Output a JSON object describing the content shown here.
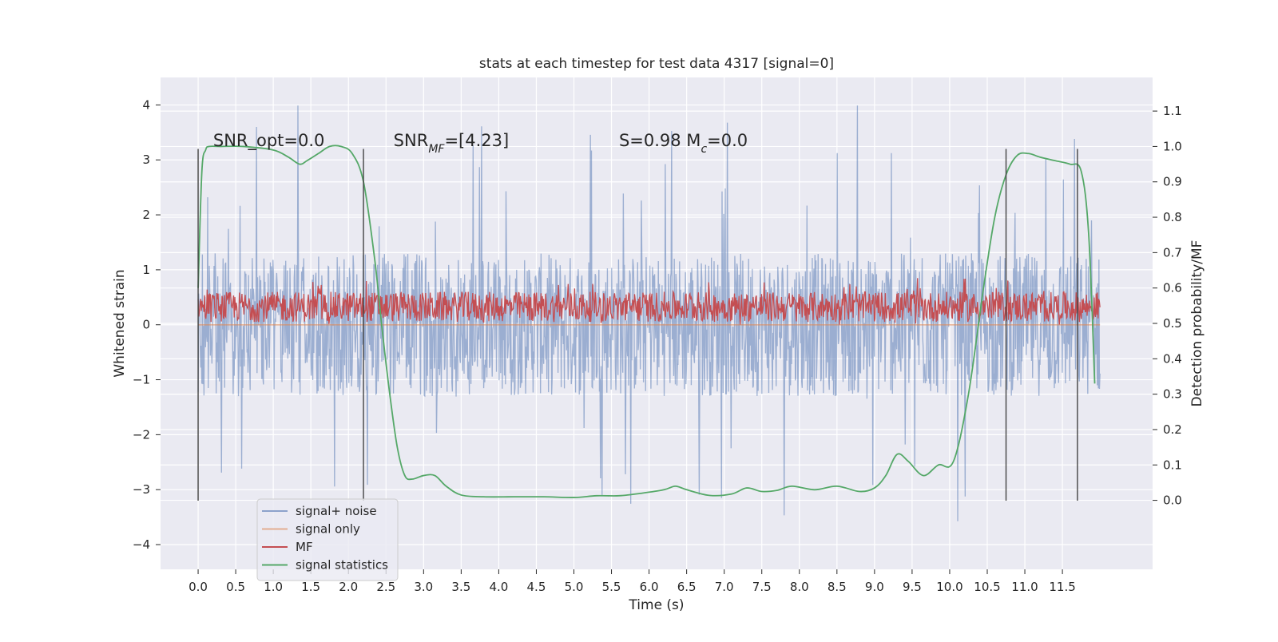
{
  "chart_data": {
    "type": "line",
    "title": "stats at each timestep for test data 4317 [signal=0]",
    "xlabel": "Time (s)",
    "ylabel": "Whitened strain",
    "ylabel_right": "Detection probability/MF",
    "xlim": [
      -0.5,
      12.7
    ],
    "ylim": [
      -4.45,
      4.5
    ],
    "ylim_right": [
      -0.195,
      1.195
    ],
    "x_ticks": [
      0.0,
      0.5,
      1.0,
      1.5,
      2.0,
      2.5,
      3.0,
      3.5,
      4.0,
      4.5,
      5.0,
      5.5,
      6.0,
      6.5,
      7.0,
      7.5,
      8.0,
      8.5,
      9.0,
      9.5,
      10.0,
      10.5,
      11.0,
      11.5
    ],
    "x_tick_labels": [
      "0.0",
      "0.5",
      "1.0",
      "1.5",
      "2.0",
      "2.5",
      "3.0",
      "3.5",
      "4.0",
      "4.5",
      "5.0",
      "5.5",
      "6.0",
      "6.5",
      "7.0",
      "7.5",
      "8.0",
      "8.5",
      "9.0",
      "9.5",
      "10.0",
      "10.5",
      "11.0",
      "11.5"
    ],
    "y_ticks": [
      4,
      3,
      2,
      1,
      0,
      -1,
      -2,
      -3,
      -4
    ],
    "y_tick_labels": [
      "4",
      "3",
      "2",
      "1",
      "0",
      "−1",
      "−2",
      "−3",
      "−4"
    ],
    "y_right_ticks": [
      1.1,
      1.0,
      0.9,
      0.8,
      0.7,
      0.6,
      0.5,
      0.4,
      0.3,
      0.2,
      0.1,
      0.0
    ],
    "y_right_tick_labels": [
      "1.1",
      "1.0",
      "0.9",
      "0.8",
      "0.7",
      "0.6",
      "0.5",
      "0.4",
      "0.3",
      "0.2",
      "0.1",
      "0.0"
    ],
    "grid": true,
    "legend_position": "lower-left",
    "annotations": [
      {
        "text": "SNR_opt=0.0",
        "x": 0.2,
        "y": 3.25
      },
      {
        "text": "SNR_MF=[4.23]",
        "x": 2.6,
        "y": 3.25
      },
      {
        "text": "S=0.98   M_c=0.0",
        "x": 5.6,
        "y": 3.25
      }
    ],
    "vertical_lines_x": [
      0.0,
      2.2,
      10.75,
      11.7
    ],
    "vertical_lines_yrange": [
      -3.2,
      3.2
    ],
    "series": [
      {
        "name": "signal+ noise",
        "color": "#4c72b0",
        "axis": "left",
        "kind": "noise",
        "x_range": [
          0.0,
          12.0
        ],
        "points": 1700,
        "band": [
          -1.3,
          1.3
        ],
        "spike_range": [
          -3.6,
          4.1
        ],
        "alpha": 0.5
      },
      {
        "name": "signal only",
        "color": "#dd8452",
        "axis": "left",
        "kind": "flat",
        "x": [
          0.0,
          12.0
        ],
        "y": [
          0.0,
          0.0
        ],
        "alpha": 0.6
      },
      {
        "name": "MF",
        "color": "#c44e52",
        "axis": "left",
        "kind": "noise",
        "x_range": [
          0.0,
          12.0
        ],
        "points": 1400,
        "band": [
          0.05,
          0.6
        ],
        "spike_range": [
          0.0,
          0.85
        ],
        "alpha": 1
      },
      {
        "name": "signal statistics",
        "color": "#55a868",
        "axis": "right",
        "kind": "line",
        "x": [
          0.0,
          0.05,
          0.1,
          0.15,
          0.3,
          0.6,
          1.0,
          1.2,
          1.35,
          1.45,
          1.6,
          1.75,
          1.9,
          2.05,
          2.2,
          2.35,
          2.45,
          2.55,
          2.65,
          2.75,
          2.85,
          3.0,
          3.15,
          3.3,
          3.5,
          3.8,
          4.2,
          4.6,
          5.0,
          5.3,
          5.6,
          5.9,
          6.2,
          6.35,
          6.5,
          6.8,
          7.1,
          7.3,
          7.5,
          7.7,
          7.9,
          8.2,
          8.5,
          8.8,
          9.0,
          9.15,
          9.3,
          9.45,
          9.65,
          9.85,
          10.05,
          10.25,
          10.45,
          10.6,
          10.75,
          10.9,
          11.05,
          11.2,
          11.4,
          11.6,
          11.75,
          11.85,
          11.93
        ],
        "y": [
          0.6,
          0.93,
          0.99,
          1.0,
          1.0,
          1.0,
          0.99,
          0.97,
          0.95,
          0.96,
          0.98,
          1.0,
          1.0,
          0.98,
          0.9,
          0.68,
          0.48,
          0.3,
          0.15,
          0.07,
          0.06,
          0.07,
          0.07,
          0.04,
          0.015,
          0.01,
          0.01,
          0.01,
          0.008,
          0.013,
          0.013,
          0.02,
          0.03,
          0.04,
          0.03,
          0.014,
          0.018,
          0.035,
          0.025,
          0.028,
          0.04,
          0.03,
          0.04,
          0.025,
          0.035,
          0.07,
          0.13,
          0.11,
          0.07,
          0.1,
          0.11,
          0.3,
          0.6,
          0.8,
          0.92,
          0.975,
          0.98,
          0.97,
          0.96,
          0.95,
          0.93,
          0.75,
          0.33
        ],
        "alpha": 1
      }
    ]
  }
}
